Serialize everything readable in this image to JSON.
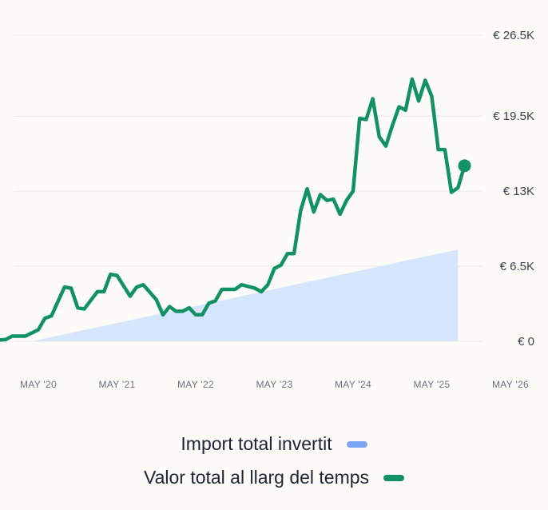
{
  "chart_data": {
    "type": "line",
    "title": "",
    "xlabel": "",
    "ylabel": "",
    "x_tick_labels": [
      "MAY '20",
      "MAY '21",
      "MAY '22",
      "MAY '23",
      "MAY '24",
      "MAY '25",
      "MAY '26"
    ],
    "y_tick_labels": [
      "€ 0",
      "€ 6.5K",
      "€ 13K",
      "€ 19.5K",
      "€ 26.5K"
    ],
    "y_ticks": [
      0,
      6500,
      13000,
      19500,
      26500
    ],
    "ylim": [
      0,
      26500
    ],
    "xlim": [
      "2019-09",
      "2026-05"
    ],
    "grid": true,
    "legend_position": "bottom-center",
    "series": [
      {
        "name": "Import total invertit",
        "kind": "area",
        "color": "#d6e6fd",
        "legend_color": "#7ba5f3",
        "points": [
          [
            "2020-04",
            0
          ],
          [
            "2025-09",
            7950
          ]
        ]
      },
      {
        "name": "Valor total al llarg del temps",
        "kind": "line",
        "color": "#119164",
        "end_marker": true,
        "points": [
          [
            "2019-09",
            0
          ],
          [
            "2019-12",
            150
          ],
          [
            "2020-01",
            450
          ],
          [
            "2020-03",
            450
          ],
          [
            "2020-05",
            1000
          ],
          [
            "2020-06",
            2000
          ],
          [
            "2020-07",
            2200
          ],
          [
            "2020-09",
            4700
          ],
          [
            "2020-10",
            4600
          ],
          [
            "2020-11",
            2900
          ],
          [
            "2020-12",
            2800
          ],
          [
            "2021-02",
            4300
          ],
          [
            "2021-03",
            4300
          ],
          [
            "2021-04",
            5800
          ],
          [
            "2021-05",
            5700
          ],
          [
            "2021-07",
            3900
          ],
          [
            "2021-08",
            4700
          ],
          [
            "2021-09",
            4900
          ],
          [
            "2021-11",
            3600
          ],
          [
            "2021-12",
            2300
          ],
          [
            "2022-01",
            3000
          ],
          [
            "2022-02",
            2600
          ],
          [
            "2022-03",
            2600
          ],
          [
            "2022-04",
            2900
          ],
          [
            "2022-05",
            2300
          ],
          [
            "2022-06",
            2300
          ],
          [
            "2022-07",
            3300
          ],
          [
            "2022-08",
            3500
          ],
          [
            "2022-09",
            4500
          ],
          [
            "2022-11",
            4500
          ],
          [
            "2022-12",
            4900
          ],
          [
            "2023-02",
            4600
          ],
          [
            "2023-03",
            4300
          ],
          [
            "2023-04",
            4900
          ],
          [
            "2023-05",
            6300
          ],
          [
            "2023-06",
            6600
          ],
          [
            "2023-07",
            7600
          ],
          [
            "2023-08",
            7600
          ],
          [
            "2023-09",
            11300
          ],
          [
            "2023-10",
            13200
          ],
          [
            "2023-11",
            11200
          ],
          [
            "2023-12",
            12700
          ],
          [
            "2024-01",
            12200
          ],
          [
            "2024-02",
            12300
          ],
          [
            "2024-03",
            11000
          ],
          [
            "2024-04",
            12200
          ],
          [
            "2024-05",
            13000
          ],
          [
            "2024-06",
            19300
          ],
          [
            "2024-07",
            19200
          ],
          [
            "2024-08",
            21000
          ],
          [
            "2024-09",
            17700
          ],
          [
            "2024-10",
            16900
          ],
          [
            "2024-11",
            18700
          ],
          [
            "2024-12",
            20300
          ],
          [
            "2025-01",
            20000
          ],
          [
            "2025-02",
            22700
          ],
          [
            "2025-03",
            20800
          ],
          [
            "2025-04",
            22600
          ],
          [
            "2025-05",
            21200
          ],
          [
            "2025-06",
            16600
          ],
          [
            "2025-07",
            16600
          ],
          [
            "2025-08",
            12900
          ],
          [
            "2025-09",
            13300
          ],
          [
            "2025-10",
            15200
          ]
        ]
      }
    ]
  }
}
